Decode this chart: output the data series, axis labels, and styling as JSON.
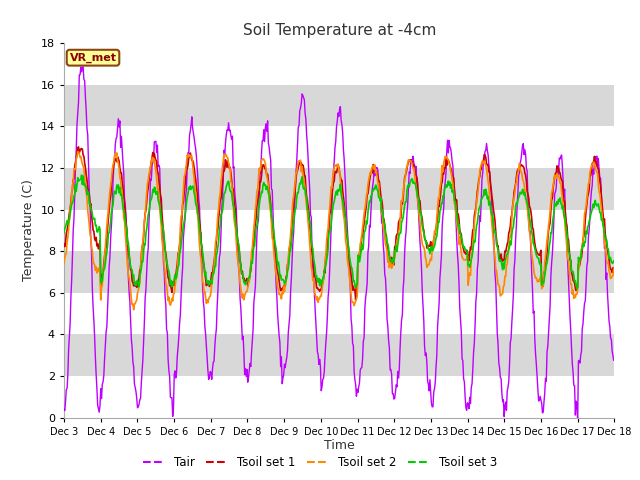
{
  "title": "Soil Temperature at -4cm",
  "xlabel": "Time",
  "ylabel": "Temperature (C)",
  "ylim": [
    0,
    18
  ],
  "label_vr": "VR_met",
  "xtick_labels": [
    "Dec 3",
    "Dec 4",
    "Dec 5",
    "Dec 6",
    "Dec 7",
    "Dec 8",
    "Dec 9",
    "Dec 10",
    "Dec 11",
    "Dec 12",
    "Dec 13",
    "Dec 14",
    "Dec 15",
    "Dec 16",
    "Dec 17",
    "Dec 18"
  ],
  "line_colors": {
    "Tair": "#bf00ff",
    "Tsoil_1": "#cc0000",
    "Tsoil_2": "#ff8800",
    "Tsoil_3": "#00cc00"
  },
  "legend_labels": [
    "Tair",
    "Tsoil set 1",
    "Tsoil set 2",
    "Tsoil set 3"
  ],
  "band_color": "#e0e0e0",
  "bg_color": "#f0f0f0",
  "n_days": 15,
  "pts_per_day": 48,
  "peak_tair": [
    17.0,
    14.0,
    13.1,
    14.0,
    14.0,
    14.2,
    15.3,
    14.7,
    12.0,
    12.6,
    13.2,
    12.9,
    13.0,
    12.5,
    12.5
  ],
  "trough_tair": [
    0.3,
    1.3,
    0.4,
    2.0,
    2.1,
    1.9,
    2.5,
    1.5,
    1.4,
    1.0,
    0.7,
    0.6,
    0.5,
    0.3,
    2.8
  ],
  "peak_ts1": [
    13.0,
    12.5,
    12.6,
    12.5,
    12.3,
    12.1,
    12.3,
    12.0,
    12.0,
    12.4,
    12.3,
    12.5,
    12.2,
    12.0,
    12.3
  ],
  "trough_ts1": [
    8.2,
    6.3,
    6.2,
    6.3,
    6.5,
    6.1,
    6.1,
    6.0,
    7.5,
    8.2,
    8.0,
    7.5,
    7.8,
    6.2,
    7.0
  ],
  "peak_ts2": [
    12.7,
    12.6,
    12.4,
    12.7,
    12.6,
    12.4,
    12.3,
    12.2,
    12.1,
    12.4,
    12.5,
    12.3,
    11.9,
    11.8,
    12.2
  ],
  "trough_ts2": [
    7.0,
    5.4,
    5.5,
    5.5,
    5.7,
    5.8,
    5.6,
    5.5,
    7.3,
    7.4,
    7.5,
    6.0,
    6.5,
    5.8,
    6.8
  ],
  "peak_ts3": [
    11.5,
    11.1,
    11.0,
    11.1,
    11.2,
    11.2,
    11.3,
    11.0,
    11.1,
    11.4,
    11.3,
    10.8,
    10.9,
    10.5,
    10.3
  ],
  "trough_ts3": [
    9.0,
    6.5,
    6.4,
    6.4,
    6.5,
    6.6,
    6.5,
    6.4,
    7.5,
    8.0,
    8.0,
    7.2,
    7.5,
    6.4,
    7.5
  ]
}
